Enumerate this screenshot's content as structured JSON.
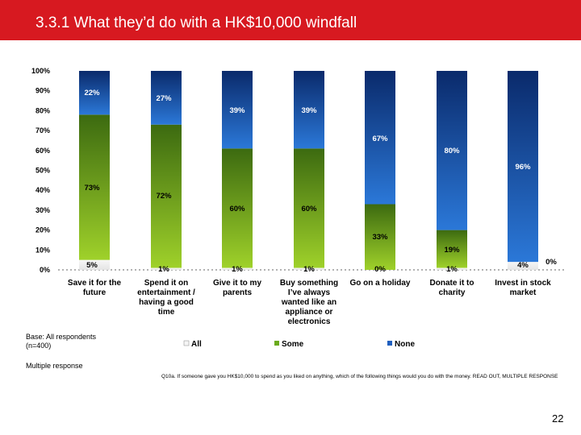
{
  "header": {
    "title": "3.3.1 What they’d do with a HK$10,000 windfall"
  },
  "notes": {
    "base": "Base: All respondents\n(n=400)",
    "multiple": "Multiple response",
    "question": "Q10a. If someone gave you HK$10,000 to spend as you liked on anything, which of the following things would you do with the money. READ OUT, MULTIPLE RESPONSE"
  },
  "page_number": "22",
  "colors": {
    "title_bar": "#d71920",
    "all": "#f2f2f2",
    "some": "#6aaa1c",
    "none": "#1f5fbf"
  },
  "chart_data": {
    "type": "bar",
    "stacked": true,
    "title": "",
    "xlabel": "",
    "ylabel": "",
    "ylim": [
      0,
      100
    ],
    "y_ticks": [
      "0%",
      "10%",
      "20%",
      "30%",
      "40%",
      "50%",
      "60%",
      "70%",
      "80%",
      "90%",
      "100%"
    ],
    "grid": false,
    "legend_position": "bottom",
    "categories": [
      [
        "Save it for the",
        "future"
      ],
      [
        "Spend it on",
        "entertainment /",
        "having a good",
        "time"
      ],
      [
        "Give it to my",
        "parents"
      ],
      [
        "Buy something",
        "I’ve always",
        "wanted like an",
        "appliance or",
        "electronics"
      ],
      [
        "Go on a holiday"
      ],
      [
        "Donate it to",
        "charity"
      ],
      [
        "Invest in stock",
        "market"
      ]
    ],
    "series": [
      {
        "name": "All",
        "values": [
          5,
          1,
          1,
          1,
          0,
          1,
          4
        ],
        "labels": [
          "5%",
          "1%",
          "1%",
          "1%",
          "0%",
          "1%",
          "4%"
        ]
      },
      {
        "name": "Some",
        "values": [
          73,
          72,
          60,
          60,
          33,
          19,
          0
        ],
        "labels": [
          "73%",
          "72%",
          "60%",
          "60%",
          "33%",
          "19%",
          "0%"
        ]
      },
      {
        "name": "None",
        "values": [
          22,
          27,
          39,
          39,
          67,
          80,
          96
        ],
        "labels": [
          "22%",
          "27%",
          "39%",
          "39%",
          "67%",
          "80%",
          "96%"
        ]
      }
    ]
  }
}
